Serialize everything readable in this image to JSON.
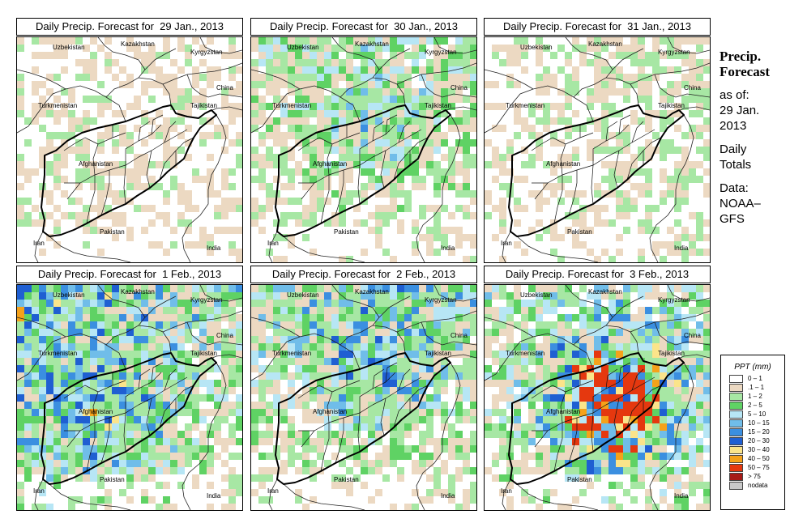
{
  "panels": [
    {
      "title": "Daily Precip. Forecast for  29 Jan., 2013",
      "intensity": 0.25,
      "bias": "scatter"
    },
    {
      "title": "Daily Precip. Forecast for  30 Jan., 2013",
      "intensity": 0.55,
      "bias": "north"
    },
    {
      "title": "Daily Precip. Forecast for  31 Jan., 2013",
      "intensity": 0.3,
      "bias": "east"
    },
    {
      "title": "Daily Precip. Forecast for  1 Feb., 2013",
      "intensity": 0.75,
      "bias": "northwest"
    },
    {
      "title": "Daily Precip. Forecast for  2 Feb., 2013",
      "intensity": 0.7,
      "bias": "north"
    },
    {
      "title": "Daily Precip. Forecast for  3 Feb., 2013",
      "intensity": 1.0,
      "bias": "center"
    }
  ],
  "country_labels": {
    "kazakhstan": "Kazakhstan",
    "uzbekistan": "Uzbekistan",
    "kyrgyzstan": "Kyrgyzstan",
    "china": "China",
    "tajikistan": "Tajikistan",
    "turkmenistan": "Turkmenistan",
    "afghanistan": "Afghanistan",
    "pakistan": "Pakistan",
    "iran": "Iran",
    "india": "India"
  },
  "sidebar": {
    "heading_line1": "Precip.",
    "heading_line2": "Forecast",
    "asof_line1": "as of:",
    "asof_line2": "29 Jan.",
    "asof_line3": "2013",
    "totals_line1": "Daily",
    "totals_line2": "Totals",
    "data_line1": "Data:",
    "data_line2": "NOAA–",
    "data_line3": "GFS"
  },
  "legend": {
    "title": "PPT (mm)",
    "items": [
      {
        "label": "0 – 1",
        "color": "#ffffff"
      },
      {
        "label": ".1 – 1",
        "color": "#ecd9c2"
      },
      {
        "label": "1 – 2",
        "color": "#a7e7a4"
      },
      {
        "label": "2 – 5",
        "color": "#5fd264"
      },
      {
        "label": "5 – 10",
        "color": "#b7e6f5"
      },
      {
        "label": "10 – 15",
        "color": "#70bde9"
      },
      {
        "label": "15 – 20",
        "color": "#3b8fe0"
      },
      {
        "label": "20 – 30",
        "color": "#1f5fd2"
      },
      {
        "label": "30 – 40",
        "color": "#fbe48a"
      },
      {
        "label": "40 – 50",
        "color": "#f5a21a"
      },
      {
        "label": "50 – 75",
        "color": "#e5380f"
      },
      {
        "label": "> 75",
        "color": "#a61b17"
      },
      {
        "label": "nodata",
        "color": "#c9c9c9"
      }
    ]
  }
}
